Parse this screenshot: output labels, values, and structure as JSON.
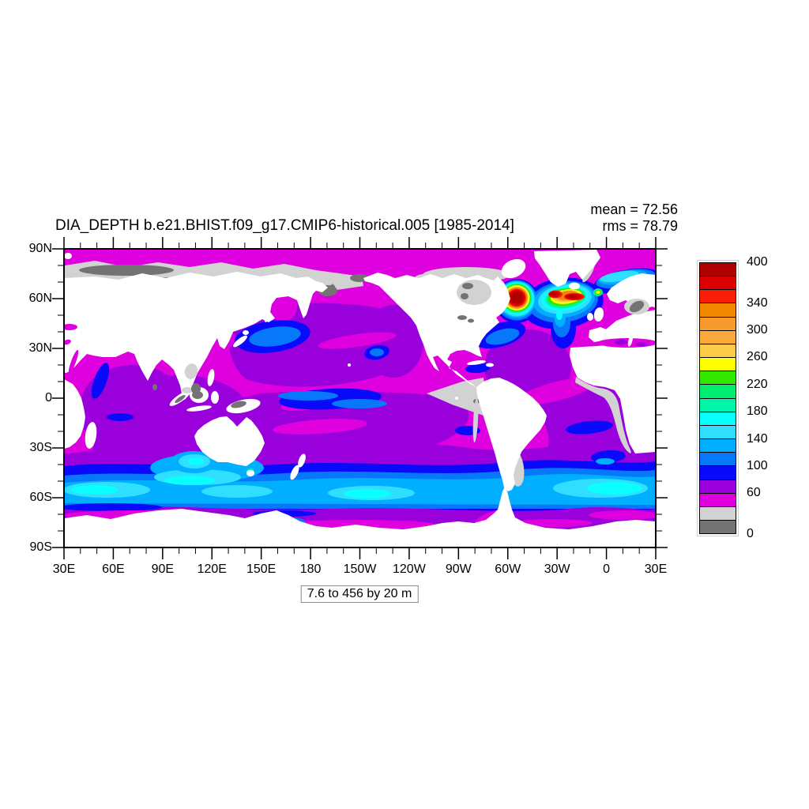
{
  "title": "DIA_DEPTH b.e21.BHIST.f09_g17.CMIP6-historical.005 [1985-2014]",
  "stats": {
    "mean_label": "mean = 72.56",
    "rms_label": "rms = 78.79"
  },
  "range_box_label": "7.6 to 456 by 20 m",
  "axes": {
    "x_ticks": [
      "30E",
      "60E",
      "90E",
      "120E",
      "150E",
      "180",
      "150W",
      "120W",
      "90W",
      "60W",
      "30W",
      "0",
      "30E"
    ],
    "y_ticks": [
      "90N",
      "60N",
      "30N",
      "0",
      "30S",
      "60S",
      "90S"
    ]
  },
  "colorbar": {
    "labels": [
      {
        "text": "400",
        "at": 0
      },
      {
        "text": "340",
        "at": 3
      },
      {
        "text": "300",
        "at": 5
      },
      {
        "text": "260",
        "at": 7
      },
      {
        "text": "220",
        "at": 9
      },
      {
        "text": "180",
        "at": 11
      },
      {
        "text": "140",
        "at": 13
      },
      {
        "text": "100",
        "at": 15
      },
      {
        "text": "60",
        "at": 17
      },
      {
        "text": "0",
        "at": 20
      }
    ],
    "segments": [
      {
        "color": "#B00000"
      },
      {
        "color": "#DD0000"
      },
      {
        "color": "#FA1E0A"
      },
      {
        "color": "#F08800"
      },
      {
        "color": "#F79B2E"
      },
      {
        "color": "#FAA93C"
      },
      {
        "color": "#FBCC47"
      },
      {
        "color": "#FFFF00"
      },
      {
        "color": "#33E800"
      },
      {
        "color": "#00EE70"
      },
      {
        "color": "#00F5A9"
      },
      {
        "color": "#0AFFFF"
      },
      {
        "color": "#30DFFF"
      },
      {
        "color": "#00AFFF"
      },
      {
        "color": "#0878FA"
      },
      {
        "color": "#0A0AFA"
      },
      {
        "color": "#9A00DC"
      },
      {
        "color": "#DE00DE"
      },
      {
        "color": "#D2D2D2"
      },
      {
        "color": "#737373"
      }
    ]
  },
  "chart_data": {
    "type": "heatmap",
    "subtype": "filled-contour global lat-lon map",
    "title": "DIA_DEPTH b.e21.BHIST.f09_g17.CMIP6-historical.005 [1985-2014]",
    "variable": "DIA_DEPTH",
    "units": "m",
    "stats": {
      "mean": 72.56,
      "rms": 78.79
    },
    "contour_range_note": "7.6 to 456 by 20 m",
    "x_tick_labels": [
      "30E",
      "60E",
      "90E",
      "120E",
      "150E",
      "180",
      "150W",
      "120W",
      "90W",
      "60W",
      "30W",
      "0",
      "30E"
    ],
    "y_tick_labels": [
      "90N",
      "60N",
      "30N",
      "0",
      "30S",
      "60S",
      "90S"
    ],
    "colorbar_min": 0,
    "colorbar_max": 400,
    "colorbar_step": 20,
    "colorbar_tick_labels": [
      400,
      340,
      300,
      260,
      220,
      180,
      140,
      100,
      60,
      0
    ],
    "colorbar_colors_top_to_bottom": [
      "#B00000",
      "#DD0000",
      "#FA1E0A",
      "#F08800",
      "#F79B2E",
      "#FAA93C",
      "#FBCC47",
      "#FFFF00",
      "#33E800",
      "#00EE70",
      "#00F5A9",
      "#0AFFFF",
      "#30DFFF",
      "#00AFFF",
      "#0878FA",
      "#0A0AFA",
      "#9A00DC",
      "#DE00DE",
      "#D2D2D2",
      "#737373"
    ],
    "notable_features": [
      "Most of the global ocean in 20-80 m range (magenta/purple)",
      "Maximum values 300-400+ m (orange/red) in North Atlantic subpolar gyre near Labrador Sea and Irminger/Iceland basins around 60N",
      "Cyan/blue band of 100-180 m across the Southern Ocean near 45S-60S",
      "0-40 m (gray) along Arctic shelves, eastern equatorial Pacific wedge and west African shelf",
      "Land areas shown in white"
    ],
    "legend_position": "right",
    "grid": false
  }
}
